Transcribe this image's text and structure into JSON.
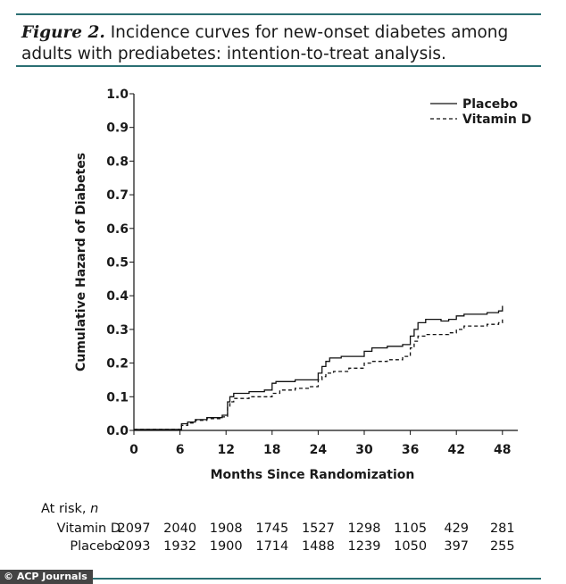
{
  "caption": {
    "lead": "Figure 2.",
    "text": " Incidence curves for new-onset diabetes among adults with prediabetes: intention-to-treat analysis."
  },
  "chart_data": {
    "type": "line",
    "step": true,
    "xlabel": "Months Since Randomization",
    "ylabel": "Cumulative Hazard of Diabetes",
    "xlim": [
      0,
      50
    ],
    "ylim": [
      0,
      1.0
    ],
    "xticks": [
      0,
      6,
      12,
      18,
      24,
      30,
      36,
      42,
      48
    ],
    "yticks": [
      0.0,
      0.1,
      0.2,
      0.3,
      0.4,
      0.5,
      0.6,
      0.7,
      0.8,
      0.9,
      1.0
    ],
    "legend_position": "top-right",
    "series": [
      {
        "name": "Placebo",
        "style": "solid",
        "points": [
          [
            0,
            0.003
          ],
          [
            5.8,
            0.003
          ],
          [
            6.2,
            0.02
          ],
          [
            7,
            0.025
          ],
          [
            8,
            0.032
          ],
          [
            9.5,
            0.038
          ],
          [
            11.5,
            0.045
          ],
          [
            12.2,
            0.085
          ],
          [
            12.5,
            0.1
          ],
          [
            13,
            0.11
          ],
          [
            15,
            0.115
          ],
          [
            17,
            0.12
          ],
          [
            18,
            0.14
          ],
          [
            18.5,
            0.145
          ],
          [
            21,
            0.15
          ],
          [
            24,
            0.17
          ],
          [
            24.5,
            0.19
          ],
          [
            25,
            0.205
          ],
          [
            25.5,
            0.215
          ],
          [
            27,
            0.22
          ],
          [
            29,
            0.22
          ],
          [
            30,
            0.235
          ],
          [
            31,
            0.245
          ],
          [
            33,
            0.25
          ],
          [
            35,
            0.255
          ],
          [
            36,
            0.28
          ],
          [
            36.5,
            0.3
          ],
          [
            37,
            0.32
          ],
          [
            38,
            0.33
          ],
          [
            40,
            0.325
          ],
          [
            41,
            0.33
          ],
          [
            42,
            0.34
          ],
          [
            43,
            0.345
          ],
          [
            46,
            0.35
          ],
          [
            47.5,
            0.355
          ],
          [
            48,
            0.37
          ]
        ]
      },
      {
        "name": "Vitamin D",
        "style": "dashed",
        "points": [
          [
            0,
            0.003
          ],
          [
            5.8,
            0.003
          ],
          [
            6.2,
            0.015
          ],
          [
            7,
            0.022
          ],
          [
            8,
            0.03
          ],
          [
            9.5,
            0.035
          ],
          [
            11.5,
            0.04
          ],
          [
            12.2,
            0.07
          ],
          [
            12.5,
            0.085
          ],
          [
            13,
            0.095
          ],
          [
            15,
            0.1
          ],
          [
            17,
            0.1
          ],
          [
            18,
            0.11
          ],
          [
            19,
            0.12
          ],
          [
            21,
            0.125
          ],
          [
            23,
            0.13
          ],
          [
            24,
            0.15
          ],
          [
            24.5,
            0.16
          ],
          [
            25,
            0.17
          ],
          [
            26,
            0.175
          ],
          [
            28,
            0.185
          ],
          [
            30,
            0.2
          ],
          [
            31,
            0.205
          ],
          [
            33,
            0.21
          ],
          [
            35,
            0.22
          ],
          [
            36,
            0.245
          ],
          [
            36.5,
            0.265
          ],
          [
            37,
            0.28
          ],
          [
            38,
            0.285
          ],
          [
            40,
            0.285
          ],
          [
            41,
            0.29
          ],
          [
            42,
            0.3
          ],
          [
            43,
            0.31
          ],
          [
            46,
            0.315
          ],
          [
            47.5,
            0.32
          ],
          [
            48,
            0.33
          ]
        ]
      }
    ]
  },
  "at_risk": {
    "title": "At risk,",
    "n": "n",
    "rows": [
      {
        "name": "Vitamin D",
        "values": [
          "2097",
          "2040",
          "1908",
          "1745",
          "1527",
          "1298",
          "1105",
          "429",
          "281"
        ]
      },
      {
        "name": "Placebo",
        "values": [
          "2093",
          "1932",
          "1900",
          "1714",
          "1488",
          "1239",
          "1050",
          "397",
          "255"
        ]
      }
    ]
  },
  "watermark": "© ACP Journals"
}
